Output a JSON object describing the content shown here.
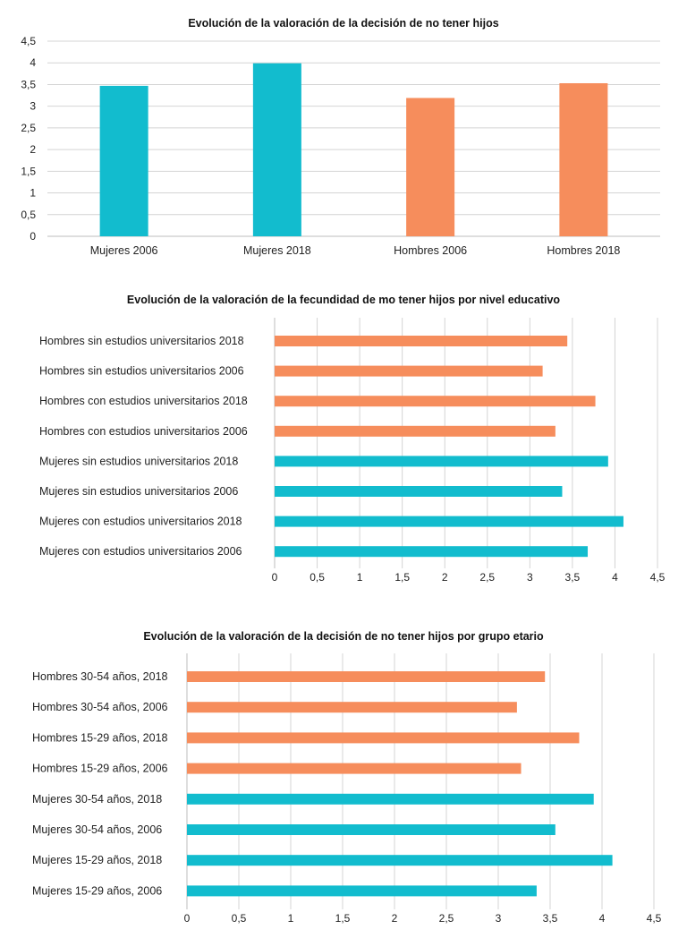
{
  "colors": {
    "mujeres": "#12BCCE",
    "hombres": "#F68D5C",
    "grid": "#d4d4d4",
    "axis": "#bdbdbd"
  },
  "chart_data": [
    {
      "type": "bar",
      "orientation": "vertical",
      "title": "Evolución de la valoración de la decisión de no tener hijos",
      "categories": [
        "Mujeres 2006",
        "Mujeres 2018",
        "Hombres 2006",
        "Hombres 2018"
      ],
      "values": [
        3.47,
        3.99,
        3.19,
        3.53
      ],
      "groups": [
        "mujeres",
        "mujeres",
        "hombres",
        "hombres"
      ],
      "ylim": [
        0,
        4.5
      ],
      "ticks": [
        "0",
        "0,5",
        "1",
        "1,5",
        "2",
        "2,5",
        "3",
        "3,5",
        "4",
        "4,5"
      ],
      "grid": true
    },
    {
      "type": "bar",
      "orientation": "horizontal",
      "title": "Evolución de la valoración de la fecundidad de mo tener hijos por nivel educativo",
      "categories": [
        "Hombres sin estudios universitarios 2018",
        "Hombres sin estudios universitarios 2006",
        "Hombres con estudios universitarios 2018",
        "Hombres con estudios universitarios 2006",
        "Mujeres sin estudios universitarios 2018",
        "Mujeres sin estudios universitarios 2006",
        "Mujeres con estudios universitarios 2018",
        "Mujeres con estudios universitarios 2006"
      ],
      "values": [
        3.44,
        3.15,
        3.77,
        3.3,
        3.92,
        3.38,
        4.1,
        3.68
      ],
      "groups": [
        "hombres",
        "hombres",
        "hombres",
        "hombres",
        "mujeres",
        "mujeres",
        "mujeres",
        "mujeres"
      ],
      "xlim": [
        0,
        4.5
      ],
      "ticks": [
        "0",
        "0,5",
        "1",
        "1,5",
        "2",
        "2,5",
        "3",
        "3,5",
        "4",
        "4,5"
      ],
      "grid": true
    },
    {
      "type": "bar",
      "orientation": "horizontal",
      "title": "Evolución de la valoración de la decisión de no tener hijos por grupo etario",
      "categories": [
        "Hombres 30-54 años, 2018",
        "Hombres 30-54 años, 2006",
        "Hombres 15-29 años, 2018",
        "Hombres 15-29 años, 2006",
        "Mujeres 30-54 años, 2018",
        "Mujeres 30-54 años, 2006",
        "Mujeres 15-29 años, 2018",
        "Mujeres 15-29 años, 2006"
      ],
      "values": [
        3.45,
        3.18,
        3.78,
        3.22,
        3.92,
        3.55,
        4.1,
        3.37
      ],
      "groups": [
        "hombres",
        "hombres",
        "hombres",
        "hombres",
        "mujeres",
        "mujeres",
        "mujeres",
        "mujeres"
      ],
      "xlim": [
        0,
        4.5
      ],
      "ticks": [
        "0",
        "0,5",
        "1",
        "1,5",
        "2",
        "2,5",
        "3",
        "3,5",
        "4",
        "4,5"
      ],
      "grid": true
    }
  ]
}
